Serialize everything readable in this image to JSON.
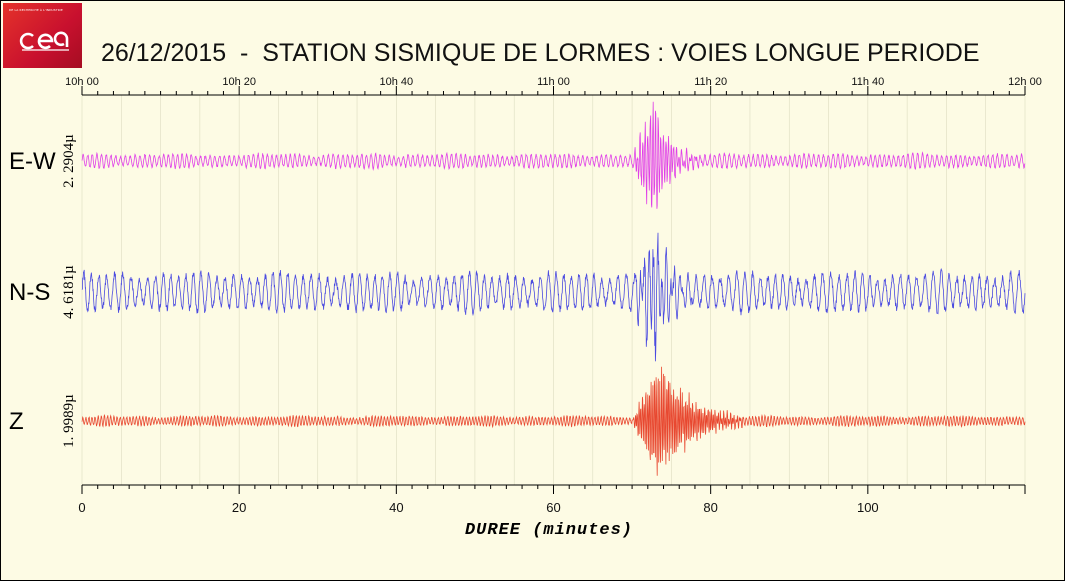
{
  "logo": {
    "name": "cea",
    "tagline": "DE LA RECHERCHE À L'INDUSTRIE"
  },
  "title": "26/12/2015  -  STATION SISMIQUE DE LORMES : VOIES LONGUE PERIODE",
  "colors": {
    "background": "#fdfbe4",
    "grid": "#dcdcc0",
    "logo_red": "#d01c24"
  },
  "chart_data": {
    "type": "line",
    "title": "26/12/2015  -  STATION SISMIQUE DE LORMES : VOIES LONGUE PERIODE",
    "xlabel": "DUREE (minutes)",
    "xlim": [
      0,
      120
    ],
    "bottom_ticks": [
      0,
      20,
      40,
      60,
      80,
      100
    ],
    "top_ticks": [
      "10h 00",
      "10h 20",
      "10h 40",
      "11h 00",
      "11h 20",
      "11h 40",
      "12h 00"
    ],
    "grid": true,
    "series": [
      {
        "name": "E-W",
        "amplitude_label": "2. 2904µ",
        "color": "#e040e8",
        "baseline_amplitude": 0.12,
        "event_amplitude": 1.0,
        "event_start_min": 70,
        "event_peak_min": 72.8,
        "event_end_min": 76,
        "dominant_period_min": 0.6
      },
      {
        "name": "N-S",
        "amplitude_label": "4. 6181µ",
        "color": "#4a4ae0",
        "baseline_amplitude": 0.32,
        "event_amplitude": 1.0,
        "event_start_min": 70,
        "event_peak_min": 72.8,
        "event_end_min": 76,
        "dominant_period_min": 1.0
      },
      {
        "name": "Z",
        "amplitude_label": "1. 9989µ",
        "color": "#e84830",
        "baseline_amplitude": 0.08,
        "event_amplitude": 1.0,
        "event_start_min": 70,
        "event_peak_min": 73.5,
        "event_end_min": 80,
        "dominant_period_min": 0.4
      }
    ]
  }
}
